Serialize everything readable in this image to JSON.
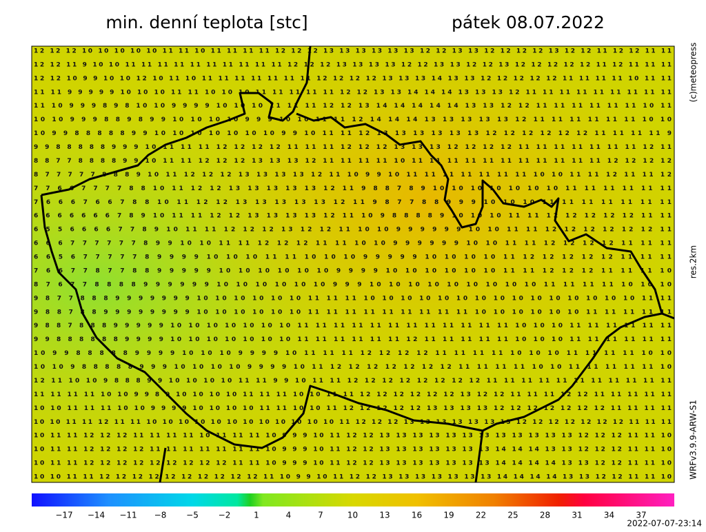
{
  "header": {
    "title": "min. denní teplota [stc]",
    "date": "pátek 08.07.2022"
  },
  "side": {
    "copyright": "(c)meteopress",
    "resolution": "res.2km",
    "model": "WRFv3.9.9-ARW-S1"
  },
  "grid": {
    "rows": [
      "12 12 12 10 10 10 10 10 11 11 10 11 11 11 11 12 12 12 13 13 13 13 13 13 12 12 13 13 12 12 12 12 13 12 12 11 12 12 11 11",
      "12 12 11 9 10 10 11 11 11 11 11 11 11 11 11 11 12 12 12 13 13 13 13 12 12 13 13 12 12 13 12 12 12 12 12 11 12 11 11 11",
      "12 12 10 9 9 10 10 12 10 11 10 11 11 11 11 11 11 11 12 12 12 12 13 13 13 14 13 13 12 12 12 12 12 11 11 11 11 10 11 11",
      "11 11 9 9 9 9 9 10 10 10 11 11 10 10 10 11 11 11 11 11 12 12 13 13 14 14 14 13 13 13 12 11 11 11 11 11 11 11 11 11",
      "11 10 9 9 9 8 9 8 10 10 9 9 9 9 10 10 10 11 11 11 12 12 13 14 14 14 14 14 13 13 12 12 11 11 11 11 11 11 10 11",
      "10 10 9 9 9 8 8 9 8 9 9 10 10 10 10 9 9 9 10 10 11 11 12 14 14 14 13 13 13 13 13 12 11 11 11 11 11 11 10 10",
      "10 9 9 8 8 8 8 8 9 9 10 10 10 10 10 10 10 9 9 10 11 11 12 13 13 13 13 13 13 12 12 12 12 12 12 11 11 11 11 9",
      "9 9 8 8 8 8 8 9 9 9 10 11 11 11 12 12 12 12 11 11 11 12 12 12 13 13 13 12 12 12 12 11 11 11 11 11 11 11 12 11",
      "8 8 7 7 8 8 8 8 9 9 10 11 11 12 12 12 13 13 13 12 11 11 11 11 10 11 11 11 11 11 11 11 11 11 11 11 12 12 12 12",
      "8 7 7 7 7 7 8 8 8 9 10 11 12 12 12 13 13 13 13 12 11 10 9 9 10 11 11 11 11 11 11 11 10 10 11 11 12 11 11 12",
      "7 7 6 6 7 7 7 7 8 8 10 11 12 12 13 13 13 13 13 12 11 9 8 8 7 8 9 10 10 10 10 10 10 10 11 11 11 11 11 11",
      "7 6 6 6 7 6 6 7 8 8 10 11 12 12 13 13 13 13 13 12 11 9 8 7 7 8 8 9 9 9 10 10 10 11 11 11 11 11 11 11",
      "6 6 6 6 6 6 6 7 8 9 10 11 11 12 12 13 13 13 13 12 11 10 9 8 8 8 8 9 10 10 10 11 11 12 12 12 12 12 11 11",
      "6 5 5 6 6 6 6 7 7 8 9 10 11 11 12 12 12 13 12 12 11 10 10 9 9 9 9 9 9 10 10 11 11 12 12 12 12 12 12 11",
      "6 6 6 7 7 7 7 7 7 8 9 9 10 10 11 11 12 12 12 11 11 10 10 9 9 9 9 9 9 10 10 11 11 12 12 12 12 11 11 11",
      "6 6 5 6 7 7 7 7 7 8 9 9 9 9 10 10 10 11 11 10 10 10 9 9 9 9 9 10 10 10 10 11 12 12 12 12 12 11 11 11",
      "7 6 6 7 7 8 7 7 8 8 9 9 9 9 9 10 10 10 10 10 10 9 9 9 9 10 10 10 10 10 10 11 11 12 12 12 11 11 11 10",
      "8 7 6 7 7 8 8 8 8 9 9 9 9 9 9 10 10 10 10 10 10 9 9 9 10 10 10 10 10 10 10 10 10 11 11 11 11 10 10 10",
      "9 8 7 7 8 8 8 9 9 9 9 9 9 9 10 10 10 10 10 10 11 11 11 10 10 10 10 10 10 10 10 10 10 10 10 10 10 10 11 11",
      "9 8 8 7 8 8 9 9 9 9 9 9 9 9 10 10 10 10 10 10 11 11 11 11 11 11 11 11 11 10 10 10 10 10 10 11 11 11 11 11",
      "9 8 8 7 8 8 8 9 9 9 9 9 10 10 10 10 10 10 10 11 11 11 11 11 11 11 11 11 11 11 11 10 10 10 11 11 11 11 11 11",
      "9 9 8 8 8 8 8 8 9 9 9 9 10 10 10 10 10 10 10 11 11 11 11 11 11 12 11 11 11 11 11 10 10 10 11 11 11 11 11 11",
      "10 9 9 8 8 8 8 8 9 9 9 9 10 10 10 9 9 9 9 10 11 11 11 12 12 12 12 11 11 11 11 10 10 10 11 11 11 11 10 10",
      "10 10 9 8 8 8 8 8 9 9 9 10 10 10 10 9 9 9 9 10 11 12 12 12 12 12 12 12 11 11 11 11 10 10 11 11 11 11 11 10",
      "12 11 10 10 9 8 8 8 9 9 10 10 10 10 11 11 9 9 10 11 11 12 12 12 12 12 12 12 12 11 11 11 11 11 11 11 11 11 11 11",
      "11 11 11 11 10 10 9 9 8 9 10 10 10 10 11 11 11 10 10 11 11 12 12 12 12 12 12 13 12 12 11 11 11 12 12 11 11 11 11 11",
      "10 10 11 11 11 10 10 9 9 9 9 10 10 10 10 11 11 10 10 11 12 12 12 12 12 13 13 13 13 12 12 12 12 12 12 12 11 11 11 11",
      "10 10 11 11 12 11 11 10 10 10 10 10 10 10 10 10 10 10 10 11 12 12 12 13 13 13 13 13 13 13 12 12 12 12 12 12 12 11 11 11",
      "10 11 11 12 12 12 11 11 11 11 10 11 11 11 10 9 9 9 10 11 12 12 13 13 13 13 13 13 13 13 13 13 13 13 12 12 12 11 11 10",
      "10 11 11 12 12 12 12 11 11 11 11 11 11 11 10 9 9 9 10 11 12 12 13 13 13 13 13 13 13 14 14 14 13 13 12 12 12 11 11 10",
      "10 11 11 12 12 12 12 12 12 12 12 12 11 11 10 9 9 9 10 11 12 12 13 13 13 13 13 13 13 14 14 14 14 13 13 12 12 11 11 10",
      "10 10 11 11 12 12 12 12 12 12 12 12 12 12 11 10 9 9 10 11 12 12 13 13 13 13 13 13 13 14 14 14 14 13 13 12 12 11 11 10"
    ]
  },
  "colorbar": {
    "ticks": [
      "−17",
      "−14",
      "−11",
      "−8",
      "−5",
      "−2",
      "1",
      "4",
      "7",
      "10",
      "13",
      "16",
      "19",
      "22",
      "25",
      "28",
      "31",
      "34",
      "37"
    ]
  },
  "timestamp": "2022-07-07-23:14"
}
